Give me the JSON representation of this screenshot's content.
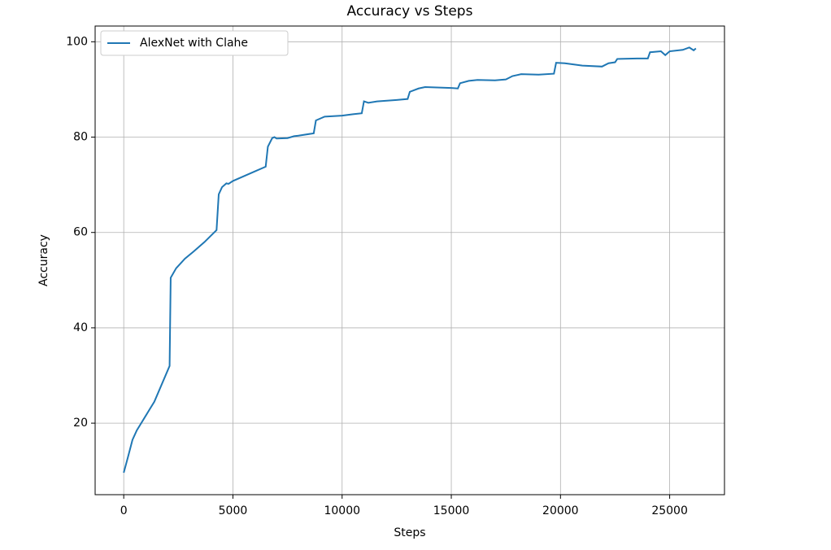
{
  "chart_data": {
    "type": "line",
    "title": "Accuracy vs Steps",
    "x_label": "Steps",
    "y_label": "Accuracy",
    "x": [
      0,
      200,
      400,
      600,
      800,
      1000,
      1200,
      1400,
      2100,
      2150,
      2400,
      2800,
      3200,
      3700,
      4250,
      4350,
      4500,
      4700,
      4800,
      5000,
      5500,
      6000,
      6500,
      6600,
      6800,
      6900,
      7000,
      7500,
      7800,
      8000,
      8700,
      8800,
      9200,
      9600,
      10000,
      10500,
      10900,
      11000,
      11200,
      11600,
      12500,
      13000,
      13100,
      13500,
      13800,
      15000,
      15300,
      15400,
      15800,
      16200,
      17000,
      17500,
      17800,
      18200,
      19000,
      19700,
      19800,
      20200,
      21000,
      21900,
      22200,
      22500,
      22600,
      23500,
      24000,
      24100,
      24600,
      24800,
      25000,
      25600,
      25900,
      26100,
      26200
    ],
    "series": [
      {
        "name": "AlexNet with Clahe",
        "color": "#1f77b4",
        "values": [
          9.6,
          13,
          16.5,
          18.5,
          20,
          21.5,
          23,
          24.5,
          32,
          50.5,
          52.5,
          54.5,
          56,
          58,
          60.5,
          68,
          69.5,
          70.3,
          70.2,
          70.8,
          71.8,
          72.8,
          73.8,
          78,
          79.8,
          80,
          79.7,
          79.8,
          80.2,
          80.3,
          80.8,
          83.5,
          84.3,
          84.4,
          84.5,
          84.8,
          85,
          87.5,
          87.2,
          87.5,
          87.8,
          88,
          89.5,
          90.2,
          90.5,
          90.3,
          90.2,
          91.3,
          91.8,
          92,
          91.9,
          92.1,
          92.8,
          93.2,
          93.1,
          93.3,
          95.6,
          95.5,
          95,
          94.8,
          95.5,
          95.7,
          96.4,
          96.5,
          96.5,
          97.8,
          98,
          97.2,
          98,
          98.3,
          98.8,
          98.2,
          98.6
        ]
      }
    ],
    "xlim": [
      -1310,
      27510
    ],
    "ylim": [
      5,
      103.3
    ],
    "xticks": [
      0,
      5000,
      10000,
      15000,
      20000,
      25000
    ],
    "yticks": [
      20,
      40,
      60,
      80,
      100
    ],
    "grid": true,
    "legend": "upper left"
  }
}
